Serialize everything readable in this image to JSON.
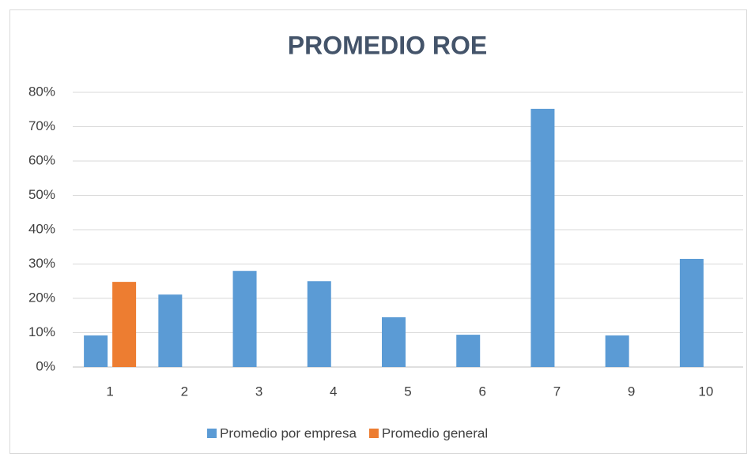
{
  "chart_data": {
    "type": "bar",
    "title": "PROMEDIO ROE",
    "categories": [
      "1",
      "2",
      "3",
      "4",
      "5",
      "6",
      "7",
      "9",
      "10"
    ],
    "series": [
      {
        "name": "Promedio por empresa",
        "color": "#5b9bd5",
        "values": [
          9.2,
          21.1,
          28,
          25,
          14.5,
          9.4,
          75.2,
          9.2,
          31.5
        ]
      },
      {
        "name": "Promedio general",
        "color": "#ed7d31",
        "values": [
          24.8,
          null,
          null,
          null,
          null,
          null,
          null,
          null,
          null
        ]
      }
    ],
    "ylim": [
      0,
      80
    ],
    "yticks": [
      {
        "value": 0,
        "label": "0%"
      },
      {
        "value": 10,
        "label": "10%"
      },
      {
        "value": 20,
        "label": "20%"
      },
      {
        "value": 30,
        "label": "30%"
      },
      {
        "value": 40,
        "label": "40%"
      },
      {
        "value": 50,
        "label": "50%"
      },
      {
        "value": 60,
        "label": "60%"
      },
      {
        "value": 70,
        "label": "70%"
      },
      {
        "value": 80,
        "label": "80%"
      }
    ],
    "grid": true,
    "legend": "bottom"
  }
}
